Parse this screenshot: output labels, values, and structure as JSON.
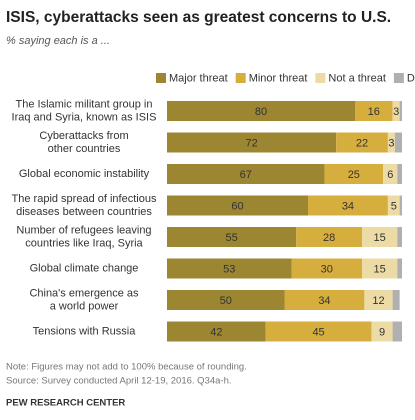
{
  "chart_data": {
    "type": "stacked_bar_horizontal",
    "title": "ISIS, cyberattacks seen as greatest concerns to U.S.",
    "subtitle": "% saying each is a ...",
    "categories": [
      "The Islamic militant group in\nIraq and Syria, known as ISIS",
      "Cyberattacks from\nother countries",
      "Global economic instability",
      "The rapid spread of infectious\ndiseases between countries",
      "Number of refugees leaving\ncountries like Iraq, Syria",
      "Global climate change",
      "China's emergence as\na world power",
      "Tensions with Russia"
    ],
    "series": [
      {
        "name": "Major threat",
        "color": "#9c8631",
        "labels": true,
        "values": [
          80,
          72,
          67,
          60,
          55,
          53,
          50,
          42
        ]
      },
      {
        "name": "Minor threat",
        "color": "#d6ae3e",
        "labels": true,
        "values": [
          16,
          22,
          25,
          34,
          28,
          30,
          34,
          45
        ]
      },
      {
        "name": "Not a threat",
        "color": "#ecdba4",
        "labels": true,
        "values": [
          3,
          3,
          6,
          5,
          15,
          15,
          12,
          9
        ]
      },
      {
        "name": "DK",
        "color": "#b0b0b0",
        "labels": false,
        "values": [
          1,
          3,
          2,
          1,
          2,
          2,
          3,
          4
        ]
      }
    ],
    "xlim": [
      0,
      100
    ],
    "notes": [
      "Note: Figures may not add to 100% because of rounding.",
      "Source: Survey conducted April 12-19, 2016. Q34a-h."
    ],
    "source": "PEW RESEARCH CENTER"
  }
}
